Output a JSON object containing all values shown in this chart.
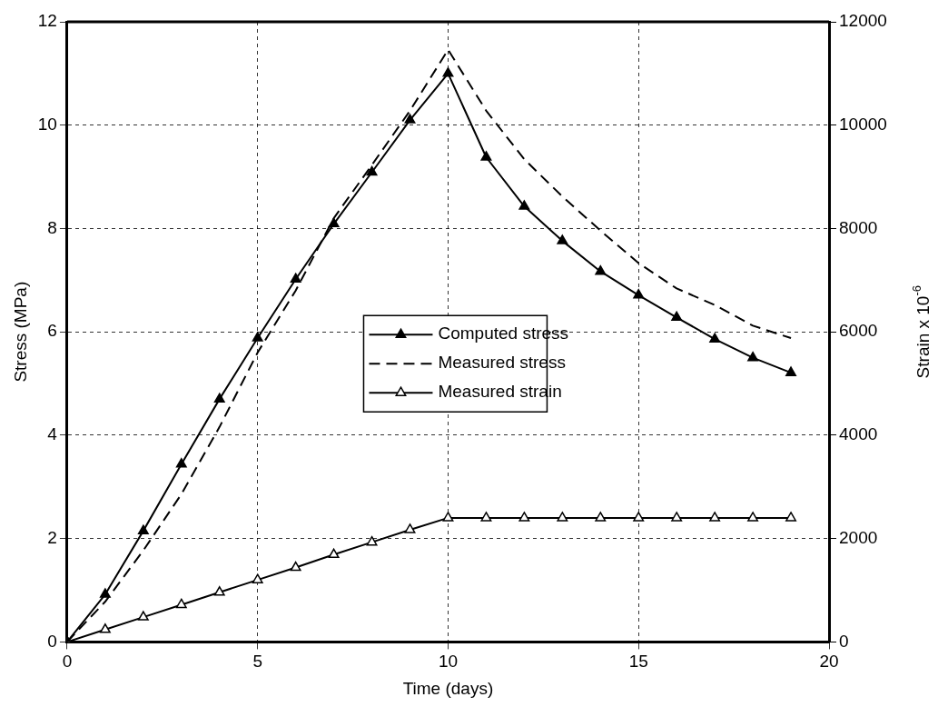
{
  "chart_data": {
    "type": "line",
    "xlabel": "Time (days)",
    "ylabel": "Stress (MPa)",
    "y2label": "Strain x 10$^{-6}$",
    "xlim": [
      0,
      20
    ],
    "xticks": [
      0,
      5,
      10,
      15,
      20
    ],
    "ylim": [
      0,
      12
    ],
    "yticks": [
      0,
      2,
      4,
      6,
      8,
      10,
      12
    ],
    "y2lim": [
      0,
      12000
    ],
    "y2ticks": [
      0,
      2000,
      4000,
      6000,
      8000,
      10000,
      12000
    ],
    "grid": true,
    "legend": "center",
    "marker": "triangle",
    "x": [
      0,
      1,
      2,
      3,
      4,
      5,
      6,
      7,
      8,
      9,
      10,
      11,
      12,
      13,
      14,
      15,
      16,
      17,
      18,
      19
    ],
    "series": [
      {
        "name": "Computed stress",
        "color": "#000000",
        "line_style": "solid",
        "values": [
          0,
          0.92,
          2.15,
          3.44,
          4.7,
          5.88,
          7.02,
          8.09,
          9.09,
          10.1,
          11.0,
          9.38,
          8.43,
          7.76,
          7.17,
          6.71,
          6.28,
          5.86,
          5.5,
          5.21
        ]
      },
      {
        "name": "Measured stress",
        "color": "#000000",
        "line_style": "dashed",
        "marker": "none",
        "values": [
          0,
          0.78,
          1.77,
          2.86,
          4.16,
          5.6,
          6.8,
          8.2,
          9.23,
          10.28,
          11.46,
          10.28,
          9.34,
          8.62,
          7.96,
          7.33,
          6.84,
          6.52,
          6.12,
          5.88
        ]
      },
      {
        "name": "Measured strain",
        "color": "#000000",
        "line_style": "solid",
        "axis": "y2",
        "values": [
          0,
          240,
          480,
          720,
          960,
          1200,
          1440,
          1690,
          1930,
          2170,
          2400,
          2400,
          2400,
          2400,
          2400,
          2400,
          2400,
          2400,
          2400,
          2400
        ]
      }
    ]
  }
}
